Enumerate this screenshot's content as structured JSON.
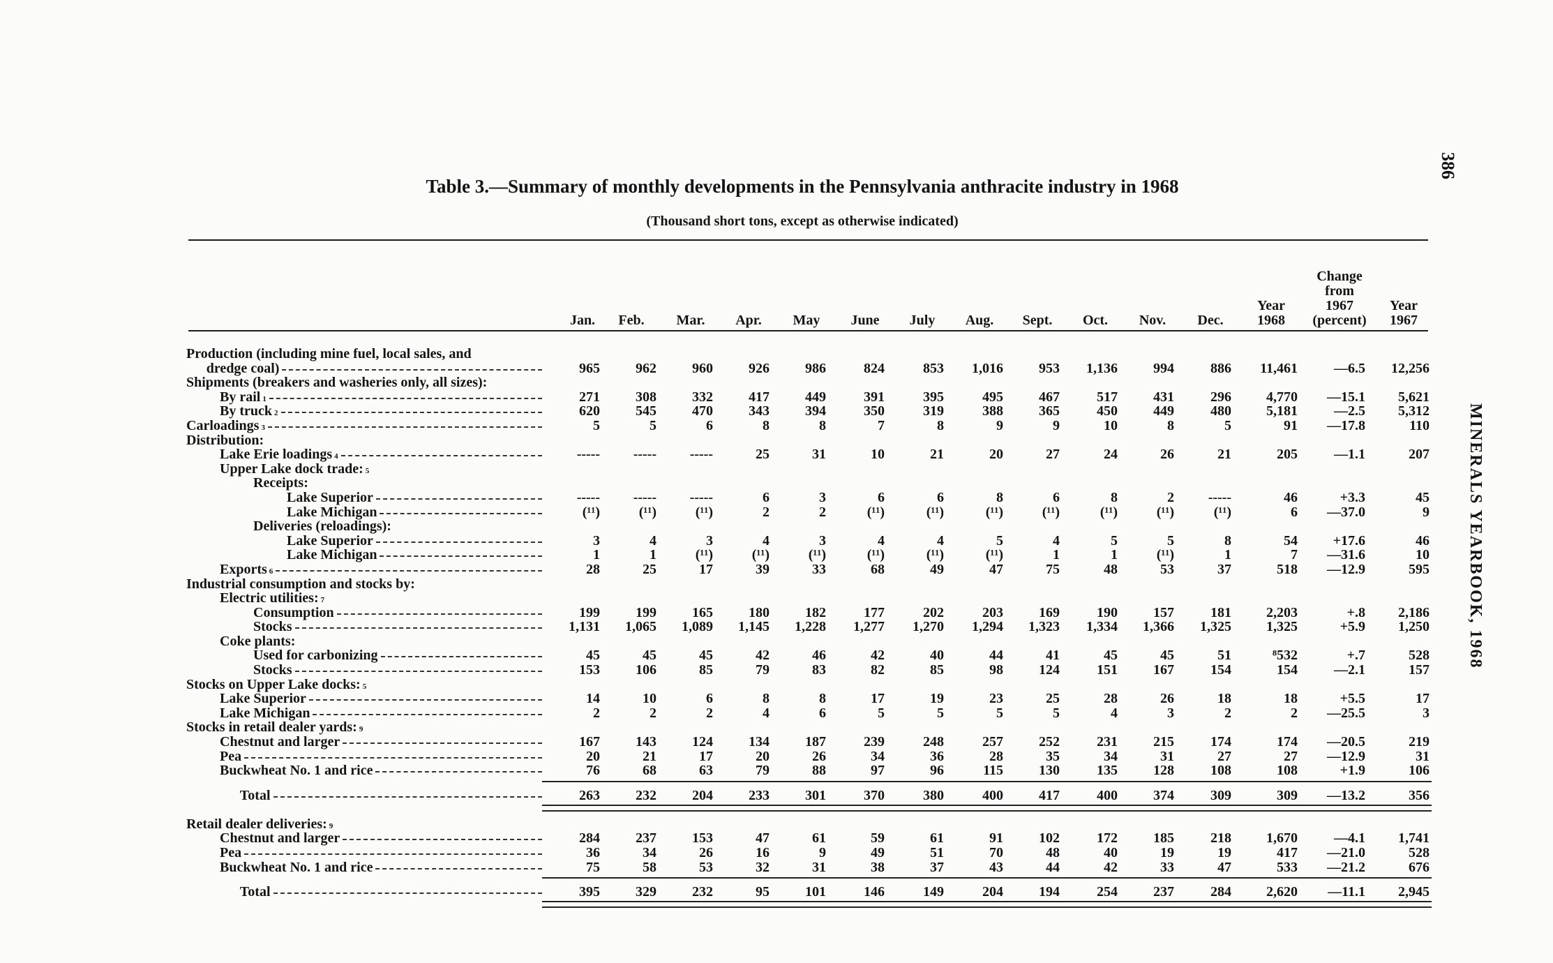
{
  "page_number": "386",
  "running_head": "MINERALS YEARBOOK, 1968",
  "title": "Table 3.—Summary of monthly developments in the Pennsylvania anthracite industry in 1968",
  "subtitle": "(Thousand short tons, except as otherwise indicated)",
  "columns": [
    [
      "Jan."
    ],
    [
      "Feb."
    ],
    [
      "Mar."
    ],
    [
      "Apr."
    ],
    [
      "May"
    ],
    [
      "June"
    ],
    [
      "July"
    ],
    [
      "Aug."
    ],
    [
      "Sept."
    ],
    [
      "Oct."
    ],
    [
      "Nov."
    ],
    [
      "Dec."
    ],
    [
      "Year",
      "1968"
    ],
    [
      "Change",
      "from",
      "1967",
      "(percent)"
    ],
    [
      "Year",
      "1967"
    ]
  ],
  "rows": [
    {
      "label": "Production (including mine fuel, local sales, and",
      "indent": 0,
      "values": null
    },
    {
      "label": "dredge coal)",
      "indent": 0.6,
      "values": [
        "965",
        "962",
        "960",
        "926",
        "986",
        "824",
        "853",
        "1,016",
        "953",
        "1,136",
        "994",
        "886",
        "11,461",
        "—6.5",
        "12,256"
      ]
    },
    {
      "label": "Shipments (breakers and washeries only, all sizes):",
      "indent": 0,
      "values": null
    },
    {
      "label": "By rail",
      "sup": "1",
      "indent": 1,
      "values": [
        "271",
        "308",
        "332",
        "417",
        "449",
        "391",
        "395",
        "495",
        "467",
        "517",
        "431",
        "296",
        "4,770",
        "—15.1",
        "5,621"
      ]
    },
    {
      "label": "By truck",
      "sup": "2",
      "indent": 1,
      "values": [
        "620",
        "545",
        "470",
        "343",
        "394",
        "350",
        "319",
        "388",
        "365",
        "450",
        "449",
        "480",
        "5,181",
        "—2.5",
        "5,312"
      ]
    },
    {
      "label": "Carloadings",
      "sup": "3",
      "indent": 0,
      "values": [
        "5",
        "5",
        "6",
        "8",
        "8",
        "7",
        "8",
        "9",
        "9",
        "10",
        "8",
        "5",
        "91",
        "—17.8",
        "110"
      ]
    },
    {
      "label": "Distribution:",
      "indent": 0,
      "values": null
    },
    {
      "label": "Lake Erie loadings",
      "sup": "4",
      "indent": 1,
      "values": [
        "-----",
        "-----",
        "-----",
        "25",
        "31",
        "10",
        "21",
        "20",
        "27",
        "24",
        "26",
        "21",
        "205",
        "—1.1",
        "207"
      ]
    },
    {
      "label": "Upper Lake dock trade:",
      "sup": "5",
      "indent": 1,
      "values": null
    },
    {
      "label": "Receipts:",
      "indent": 2,
      "values": null
    },
    {
      "label": "Lake Superior",
      "indent": 3,
      "values": [
        "-----",
        "-----",
        "-----",
        "6",
        "3",
        "6",
        "6",
        "8",
        "6",
        "8",
        "2",
        "-----",
        "46",
        "+3.3",
        "45"
      ]
    },
    {
      "label": "Lake Michigan",
      "indent": 3,
      "values": [
        "(¹¹)",
        "(¹¹)",
        "(¹¹)",
        "2",
        "2",
        "(¹¹)",
        "(¹¹)",
        "(¹¹)",
        "(¹¹)",
        "(¹¹)",
        "(¹¹)",
        "(¹¹)",
        "6",
        "—37.0",
        "9"
      ]
    },
    {
      "label": "Deliveries (reloadings):",
      "indent": 2,
      "values": null
    },
    {
      "label": "Lake Superior",
      "indent": 3,
      "values": [
        "3",
        "4",
        "3",
        "4",
        "3",
        "4",
        "4",
        "5",
        "4",
        "5",
        "5",
        "8",
        "54",
        "+17.6",
        "46"
      ]
    },
    {
      "label": "Lake Michigan",
      "indent": 3,
      "values": [
        "1",
        "1",
        "(¹¹)",
        "(¹¹)",
        "(¹¹)",
        "(¹¹)",
        "(¹¹)",
        "(¹¹)",
        "1",
        "1",
        "(¹¹)",
        "1",
        "7",
        "—31.6",
        "10"
      ]
    },
    {
      "label": "Exports",
      "sup": "6",
      "indent": 1,
      "values": [
        "28",
        "25",
        "17",
        "39",
        "33",
        "68",
        "49",
        "47",
        "75",
        "48",
        "53",
        "37",
        "518",
        "—12.9",
        "595"
      ]
    },
    {
      "label": "Industrial consumption and stocks by:",
      "indent": 0,
      "values": null
    },
    {
      "label": "Electric utilities:",
      "sup": "7",
      "indent": 1,
      "values": null
    },
    {
      "label": "Consumption",
      "indent": 2,
      "values": [
        "199",
        "199",
        "165",
        "180",
        "182",
        "177",
        "202",
        "203",
        "169",
        "190",
        "157",
        "181",
        "2,203",
        "+.8",
        "2,186"
      ]
    },
    {
      "label": "Stocks",
      "indent": 2,
      "values": [
        "1,131",
        "1,065",
        "1,089",
        "1,145",
        "1,228",
        "1,277",
        "1,270",
        "1,294",
        "1,323",
        "1,334",
        "1,366",
        "1,325",
        "1,325",
        "+5.9",
        "1,250"
      ]
    },
    {
      "label": "Coke plants:",
      "indent": 1,
      "values": null
    },
    {
      "label": "Used for carbonizing",
      "indent": 2,
      "values": [
        "45",
        "45",
        "45",
        "42",
        "46",
        "42",
        "40",
        "44",
        "41",
        "45",
        "45",
        "51",
        "⁸532",
        "+.7",
        "528"
      ]
    },
    {
      "label": "Stocks",
      "indent": 2,
      "values": [
        "153",
        "106",
        "85",
        "79",
        "83",
        "82",
        "85",
        "98",
        "124",
        "151",
        "167",
        "154",
        "154",
        "—2.1",
        "157"
      ]
    },
    {
      "label": "Stocks on Upper Lake docks:",
      "sup": "5",
      "indent": 0,
      "values": null
    },
    {
      "label": "Lake Superior",
      "indent": 1,
      "values": [
        "14",
        "10",
        "6",
        "8",
        "8",
        "17",
        "19",
        "23",
        "25",
        "28",
        "26",
        "18",
        "18",
        "+5.5",
        "17"
      ]
    },
    {
      "label": "Lake Michigan",
      "indent": 1,
      "values": [
        "2",
        "2",
        "2",
        "4",
        "6",
        "5",
        "5",
        "5",
        "5",
        "4",
        "3",
        "2",
        "2",
        "—25.5",
        "3"
      ]
    },
    {
      "label": "Stocks in retail dealer yards:",
      "sup": "9",
      "indent": 0,
      "values": null
    },
    {
      "label": "Chestnut and larger",
      "indent": 1,
      "values": [
        "167",
        "143",
        "124",
        "134",
        "187",
        "239",
        "248",
        "257",
        "252",
        "231",
        "215",
        "174",
        "174",
        "—20.5",
        "219"
      ]
    },
    {
      "label": "Pea",
      "indent": 1,
      "values": [
        "20",
        "21",
        "17",
        "20",
        "26",
        "34",
        "36",
        "28",
        "35",
        "34",
        "31",
        "27",
        "27",
        "—12.9",
        "31"
      ]
    },
    {
      "label": "Buckwheat No. 1 and rice",
      "indent": 1,
      "values": [
        "76",
        "68",
        "63",
        "79",
        "88",
        "97",
        "96",
        "115",
        "130",
        "135",
        "128",
        "108",
        "108",
        "+1.9",
        "106"
      ]
    },
    {
      "label": "Total",
      "indent": 1.6,
      "total": true,
      "values": [
        "263",
        "232",
        "204",
        "233",
        "301",
        "370",
        "380",
        "400",
        "417",
        "400",
        "374",
        "309",
        "309",
        "—13.2",
        "356"
      ]
    },
    {
      "label": "Retail dealer deliveries:",
      "sup": "9",
      "indent": 0,
      "gap": true,
      "values": null
    },
    {
      "label": "Chestnut and larger",
      "indent": 1,
      "values": [
        "284",
        "237",
        "153",
        "47",
        "61",
        "59",
        "61",
        "91",
        "102",
        "172",
        "185",
        "218",
        "1,670",
        "—4.1",
        "1,741"
      ]
    },
    {
      "label": "Pea",
      "indent": 1,
      "values": [
        "36",
        "34",
        "26",
        "16",
        "9",
        "49",
        "51",
        "70",
        "48",
        "40",
        "19",
        "19",
        "417",
        "—21.0",
        "528"
      ]
    },
    {
      "label": "Buckwheat No. 1 and rice",
      "indent": 1,
      "values": [
        "75",
        "58",
        "53",
        "32",
        "31",
        "38",
        "37",
        "43",
        "44",
        "42",
        "33",
        "47",
        "533",
        "—21.2",
        "676"
      ]
    },
    {
      "label": "Total",
      "indent": 1.6,
      "total": true,
      "values": [
        "395",
        "329",
        "232",
        "95",
        "101",
        "146",
        "149",
        "204",
        "194",
        "254",
        "237",
        "284",
        "2,620",
        "—11.1",
        "2,945"
      ]
    }
  ]
}
